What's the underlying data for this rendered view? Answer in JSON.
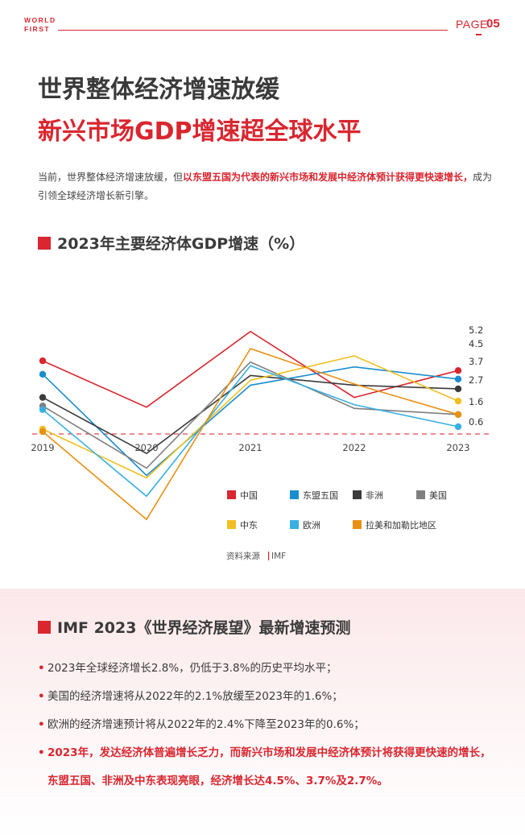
{
  "header": {
    "logo_line1": "WORLD",
    "logo_line2": "FIRST",
    "page_label": "PAGE",
    "page_number": "05"
  },
  "titles": {
    "line1": "世界整体经济增速放缓",
    "line2": "新兴市场GDP增速超全球水平"
  },
  "intro": {
    "before": "当前，世界整体经济增速放缓，但",
    "highlight": "以东盟五国为代表的新兴市场和发展中经济体预计获得更快速增长，",
    "after": "成为引领全球经济增长新引擎。"
  },
  "chart_section_title": "2023年主要经济体GDP增速（%）",
  "chart_data": {
    "type": "line",
    "title": "2023年主要经济体GDP增速（%）",
    "x": [
      "2019",
      "2020",
      "2021",
      "2022",
      "2023"
    ],
    "ylim": [
      -10,
      12
    ],
    "reference_line": 0,
    "series": [
      {
        "name": "中国",
        "color": "#d9262f",
        "values": [
          6.0,
          2.2,
          8.4,
          3.0,
          5.2
        ]
      },
      {
        "name": "东盟五国",
        "color": "#1a8dcf",
        "values": [
          4.9,
          -3.4,
          4.0,
          5.5,
          4.5
        ]
      },
      {
        "name": "非洲",
        "color": "#3b3b3b",
        "values": [
          3.0,
          -1.6,
          4.8,
          4.0,
          3.7
        ]
      },
      {
        "name": "美国",
        "color": "#7f7f7f",
        "values": [
          2.3,
          -2.8,
          5.9,
          2.1,
          1.6
        ]
      },
      {
        "name": "中东",
        "color": "#f0c020",
        "values": [
          0.4,
          -3.6,
          4.4,
          6.4,
          2.7
        ]
      },
      {
        "name": "欧洲",
        "color": "#3ab0e2",
        "values": [
          2.0,
          -5.1,
          5.6,
          2.4,
          0.6
        ]
      },
      {
        "name": "拉美和加勒比地区",
        "color": "#e89014",
        "values": [
          0.2,
          -7.0,
          7.0,
          4.1,
          1.6
        ]
      }
    ],
    "end_labels": [
      "5.2",
      "4.5",
      "3.7",
      "2.7",
      "1.6",
      "0.6"
    ],
    "legend_rows": [
      [
        0,
        1,
        2,
        3
      ],
      [
        4,
        5,
        6
      ]
    ],
    "source_label": "资料来源",
    "source_value": "IMF"
  },
  "forecast_section_title": "IMF 2023《世界经济展望》最新增速预测",
  "bullets": [
    "2023年全球经济增长2.8%，仍低于3.8%的历史平均水平；",
    "美国的经济增速将从2022年的2.1%放缓至2023年的1.6%；",
    "欧洲的经济增速预计将从2022年的2.4%下降至2023年的0.6%；"
  ],
  "bullet_strong": "2023年，发达经济体普遍增长乏力，而新兴市场和发展中经济体预计将获得更快速的增长，东盟五国、非洲及中东表现亮眼，经济增长达4.5%、3.7%及2.7%。"
}
